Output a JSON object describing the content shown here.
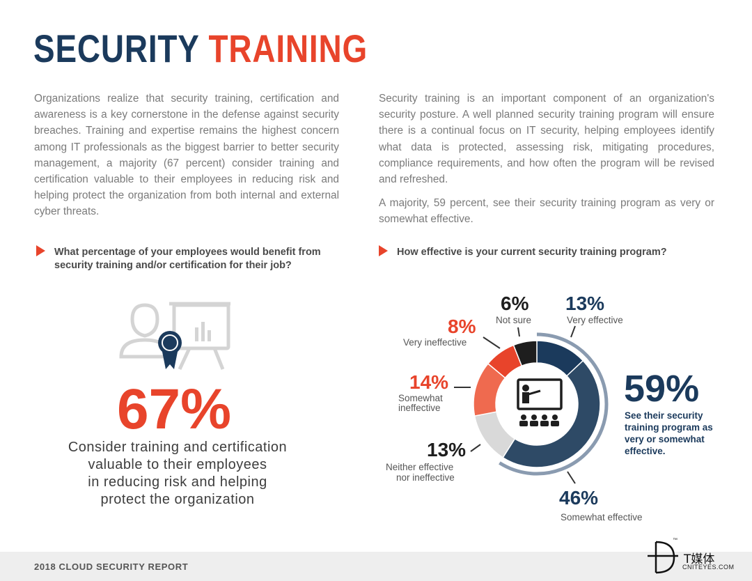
{
  "title": {
    "part1": "SECURITY",
    "part2": "TRAINING"
  },
  "left_paragraph": "Organizations realize that security training, certification and awareness is a key cornerstone in the defense against security breaches. Training and expertise remains the highest concern among IT professionals as the biggest barrier to better security management, a majority (67 percent) consider training and certification valuable to their employees in reducing risk and helping protect the organization from both internal and external cyber threats.",
  "right_paragraph_1": "Security training is an important component of an organization's security posture. A well planned security training program will ensure there is a continual focus on IT security, helping employees identify what data is protected, assessing risk, mitigating procedures, compliance requirements, and how often the program will be revised and refreshed.",
  "right_paragraph_2": "A majority, 59 percent, see their security training program as very or somewhat effective.",
  "question_left": "What percentage of your employees would benefit from security training and/or certification for their job?",
  "question_right": "How effective is your current security training program?",
  "stat_left": {
    "value": "67%",
    "desc_lines": [
      "Consider training and certification",
      "valuable to their employees",
      "in reducing risk and helping",
      "protect the organization"
    ]
  },
  "colors": {
    "navy": "#1b3a5c",
    "orange": "#e8442b",
    "dark": "#1e1e1e",
    "slate": "#2e4a66",
    "light_gray": "#d9d9d9",
    "salmon": "#ef6a4f",
    "ring": "#8a9bb0"
  },
  "chart_data": {
    "type": "pie",
    "title": "How effective is your current security training program?",
    "categories": [
      "Very effective",
      "Somewhat effective",
      "Neither effective nor ineffective",
      "Somewhat ineffective",
      "Very ineffective",
      "Not sure"
    ],
    "values": [
      13,
      46,
      13,
      14,
      8,
      6
    ],
    "labels": {
      "very_effective": {
        "pct": "13%",
        "text": "Very effective"
      },
      "somewhat_effective": {
        "pct": "46%",
        "text": "Somewhat effective"
      },
      "neither_1": {
        "pct": "13%",
        "text1": "Neither effective",
        "text2": "nor ineffective"
      },
      "somewhat_ineffective": {
        "pct": "14%",
        "text1": "Somewhat",
        "text2": "ineffective"
      },
      "very_ineffective": {
        "pct": "8%",
        "text": "Very ineffective"
      },
      "not_sure": {
        "pct": "6%",
        "text": "Not sure"
      }
    },
    "callout": {
      "value": "59%",
      "lines": [
        "See their security",
        "training program as",
        "very or somewhat",
        "effective."
      ]
    }
  },
  "footer": {
    "text": "2018 CLOUD SECURITY REPORT"
  },
  "watermark": {
    "tm": "™",
    "cn": "T媒体",
    "site": "CNITEYES.COM"
  }
}
